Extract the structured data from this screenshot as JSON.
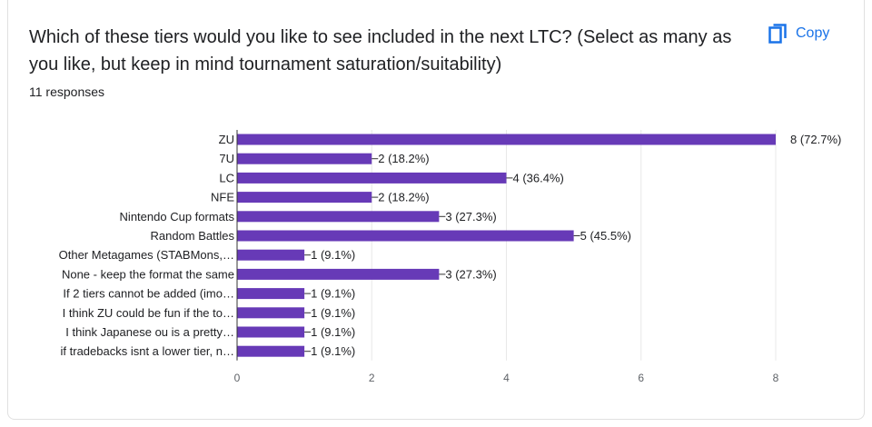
{
  "question": {
    "title": "Which of these tiers would you like to see included in the next LTC? (Select as many as you like, but keep in mind tournament saturation/suitability)",
    "responses": "11 responses"
  },
  "toolbar": {
    "copy_label": "Copy",
    "copy_icon": "copy-icon"
  },
  "colors": {
    "bar": "#673ab7",
    "accent": "#1a73e8",
    "grid": "#e8e8e8",
    "axis": "#333333"
  },
  "chart_data": {
    "type": "bar",
    "orientation": "horizontal",
    "categories": [
      "ZU",
      "7U",
      "LC",
      "NFE",
      "Nintendo Cup formats",
      "Random Battles",
      "Other Metagames (STABMons,…",
      "None - keep the format the same",
      "If 2 tiers cannot be added (imo…",
      "I think ZU could be fun if the to…",
      "I think Japanese ou is a pretty…",
      "if tradebacks isnt a lower tier, n…"
    ],
    "values": [
      8,
      2,
      4,
      2,
      3,
      5,
      1,
      3,
      1,
      1,
      1,
      1
    ],
    "labels": [
      "8 (72.7%)",
      "2 (18.2%)",
      "4 (36.4%)",
      "2 (18.2%)",
      "3 (27.3%)",
      "5 (45.5%)",
      "1 (9.1%)",
      "3 (27.3%)",
      "1 (9.1%)",
      "1 (9.1%)",
      "1 (9.1%)",
      "1 (9.1%)"
    ],
    "xticks": [
      "0",
      "2",
      "4",
      "6",
      "8"
    ],
    "xlim": [
      0,
      8
    ],
    "grid": true,
    "legend": "none"
  }
}
